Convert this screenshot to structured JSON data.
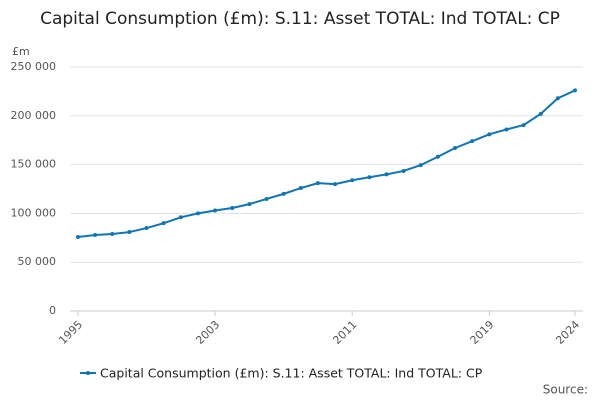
{
  "chart_data": {
    "type": "line",
    "title": "Capital Consumption (£m): S.11: Asset TOTAL: Ind TOTAL: CP",
    "y_label": "£m",
    "source": "Source:",
    "x": [
      1995,
      1996,
      1997,
      1998,
      1999,
      2000,
      2001,
      2002,
      2003,
      2004,
      2005,
      2006,
      2007,
      2008,
      2009,
      2010,
      2011,
      2012,
      2013,
      2014,
      2015,
      2016,
      2017,
      2018,
      2019,
      2020,
      2021,
      2022,
      2023,
      2024
    ],
    "series": [
      {
        "name": "Capital Consumption (£m): S.11: Asset TOTAL: Ind TOTAL: CP",
        "color": "#0f75b5",
        "values": [
          75800,
          77900,
          78900,
          80900,
          85000,
          90000,
          96000,
          100000,
          103000,
          105500,
          109500,
          114800,
          120000,
          126000,
          131000,
          130000,
          134000,
          137000,
          140000,
          143500,
          149500,
          158000,
          167000,
          174000,
          181000,
          186000,
          190500,
          202000,
          218000,
          226000
        ]
      }
    ],
    "xlim": [
      1995,
      2024
    ],
    "xticks": [
      1995,
      2003,
      2011,
      2019,
      2024
    ],
    "ylim": [
      0,
      250000
    ],
    "yticks": [
      0,
      {
        "value": 50000,
        "label": "50 000"
      },
      {
        "value": 100000,
        "label": "100 000"
      },
      {
        "value": 150000,
        "label": "150 000"
      },
      {
        "value": 200000,
        "label": "200 000"
      },
      {
        "value": 250000,
        "label": "250 000"
      }
    ],
    "grid": true
  }
}
